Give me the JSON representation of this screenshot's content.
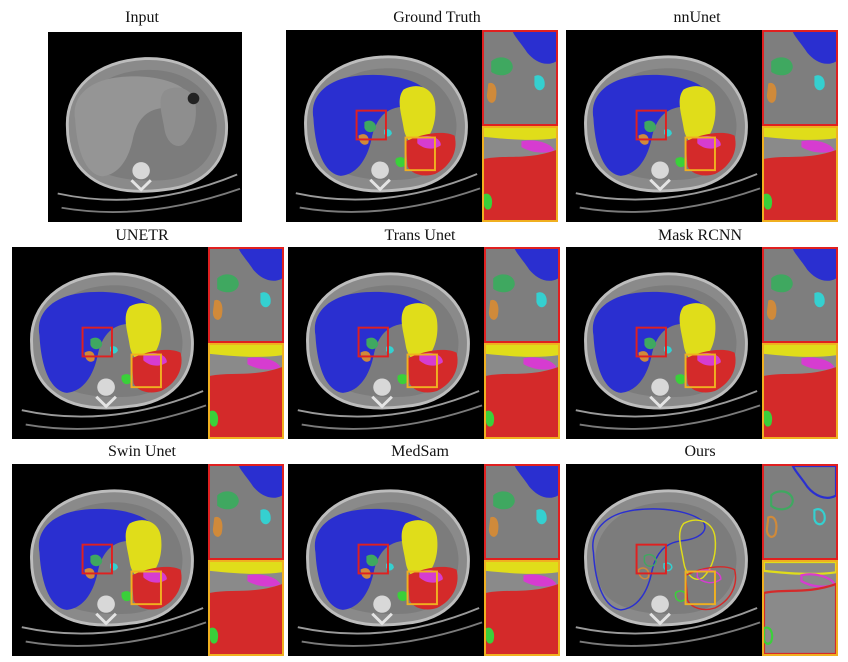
{
  "panels": [
    {
      "key": "input",
      "label": "Input",
      "style": "none",
      "insets": false
    },
    {
      "key": "gt",
      "label": "Ground Truth",
      "style": "fill",
      "insets": true
    },
    {
      "key": "nnunet",
      "label": "nnUnet",
      "style": "fill",
      "insets": true
    },
    {
      "key": "unetr",
      "label": "UNETR",
      "style": "fill",
      "insets": true
    },
    {
      "key": "transunet",
      "label": "Trans Unet",
      "style": "fill",
      "insets": true
    },
    {
      "key": "maskrcnn",
      "label": "Mask RCNN",
      "style": "fill",
      "insets": true
    },
    {
      "key": "swinunet",
      "label": "Swin Unet",
      "style": "fill",
      "insets": true
    },
    {
      "key": "medsam",
      "label": "MedSam",
      "style": "fill",
      "insets": true
    },
    {
      "key": "ours",
      "label": "Ours",
      "style": "outline",
      "insets": true
    }
  ],
  "colors": {
    "background": "#000000",
    "body": "#8a8a8a",
    "liver": "#2a2fd0",
    "spleen": "#e0dd1a",
    "kidney": "#d42a2a",
    "stomach_magenta": "#d63cd0",
    "gallbladder": "#3fa860",
    "pancreas": "#d08a3a",
    "aorta": "#35d0d0",
    "green_blob": "#3ad03a",
    "red_box": "#e02020",
    "gold_box": "#f0b020"
  }
}
